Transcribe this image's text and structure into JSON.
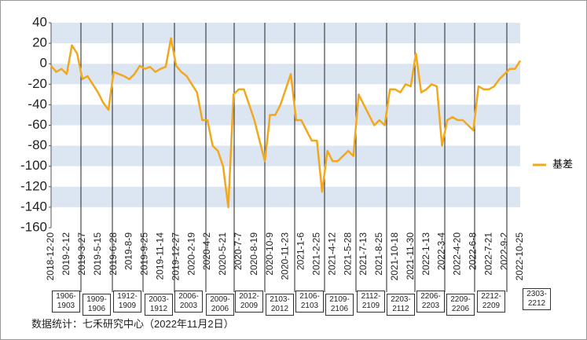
{
  "chart_data": {
    "type": "line",
    "categories": [
      "2018-12-20",
      null,
      null,
      "2019-2-12",
      null,
      null,
      "2019-3-27",
      null,
      null,
      "2019-5-15",
      null,
      null,
      "2019-6-28",
      null,
      null,
      "2019-8-9",
      null,
      null,
      "2019-9-25",
      null,
      null,
      "2019-11-14",
      null,
      null,
      "2019-12-27",
      null,
      null,
      "2020-2-19",
      null,
      null,
      "2020-4-2",
      null,
      null,
      "2020-5-21",
      null,
      null,
      "2020-7-7",
      null,
      null,
      "2020-8-19",
      null,
      null,
      "2020-10-9",
      null,
      null,
      "2020-11-23",
      null,
      null,
      "2021-1-6",
      null,
      null,
      "2021-2-25",
      null,
      null,
      "2021-4-12",
      null,
      null,
      "2021-5-28",
      null,
      null,
      "2021-7-13",
      null,
      null,
      "2021-8-25",
      null,
      null,
      "2021-10-18",
      null,
      null,
      "2021-11-30",
      null,
      null,
      "2022-1-13",
      null,
      null,
      "2022-3-4",
      null,
      null,
      "2022-4-20",
      null,
      null,
      "2022-6-8",
      null,
      null,
      "2022-7-21",
      null,
      null,
      "2022-9-2",
      null,
      null,
      "2022-10-25"
    ],
    "series": [
      {
        "name": "基差",
        "color": "#f2a81d",
        "values": [
          -2,
          -8,
          -5,
          -10,
          18,
          10,
          -15,
          -12,
          -20,
          -28,
          -38,
          -45,
          -8,
          -10,
          -12,
          -15,
          -10,
          -2,
          -5,
          -3,
          -8,
          -5,
          -3,
          25,
          -2,
          -8,
          -12,
          -20,
          -28,
          -55,
          -55,
          -80,
          -85,
          -100,
          -140,
          -30,
          -25,
          -25,
          -40,
          -55,
          -75,
          -95,
          -50,
          -50,
          -40,
          -25,
          -10,
          -55,
          -55,
          -65,
          -75,
          -75,
          -125,
          -85,
          -95,
          -95,
          -90,
          -85,
          -90,
          -30,
          -40,
          -50,
          -60,
          -55,
          -60,
          -25,
          -25,
          -28,
          -20,
          -22,
          10,
          -28,
          -25,
          -20,
          -22,
          -80,
          -55,
          -52,
          -55,
          -55,
          -60,
          -65,
          -22,
          -25,
          -25,
          -22,
          -15,
          -10,
          -5,
          -5,
          3
        ]
      }
    ],
    "ylim": [
      -160,
      40
    ],
    "yticks": [
      -160,
      -140,
      -120,
      -100,
      -80,
      -60,
      -40,
      -20,
      0,
      20,
      40
    ],
    "band_color": "#dce6f2",
    "periods": [
      "1906-1903",
      "1909-1906",
      "1912-1909",
      "2003-1912",
      "2006-2003",
      "2009-2006",
      "2012-2009",
      "2103-2012",
      "2106-2103",
      "2109-2106",
      "2112-2109",
      "2203-2112",
      "2206-2203",
      "2209-2206",
      "2212-2209",
      "2303-2212"
    ],
    "legend": "right",
    "footnote": "数据统计：七禾研究中心（2022年11月2日）"
  }
}
